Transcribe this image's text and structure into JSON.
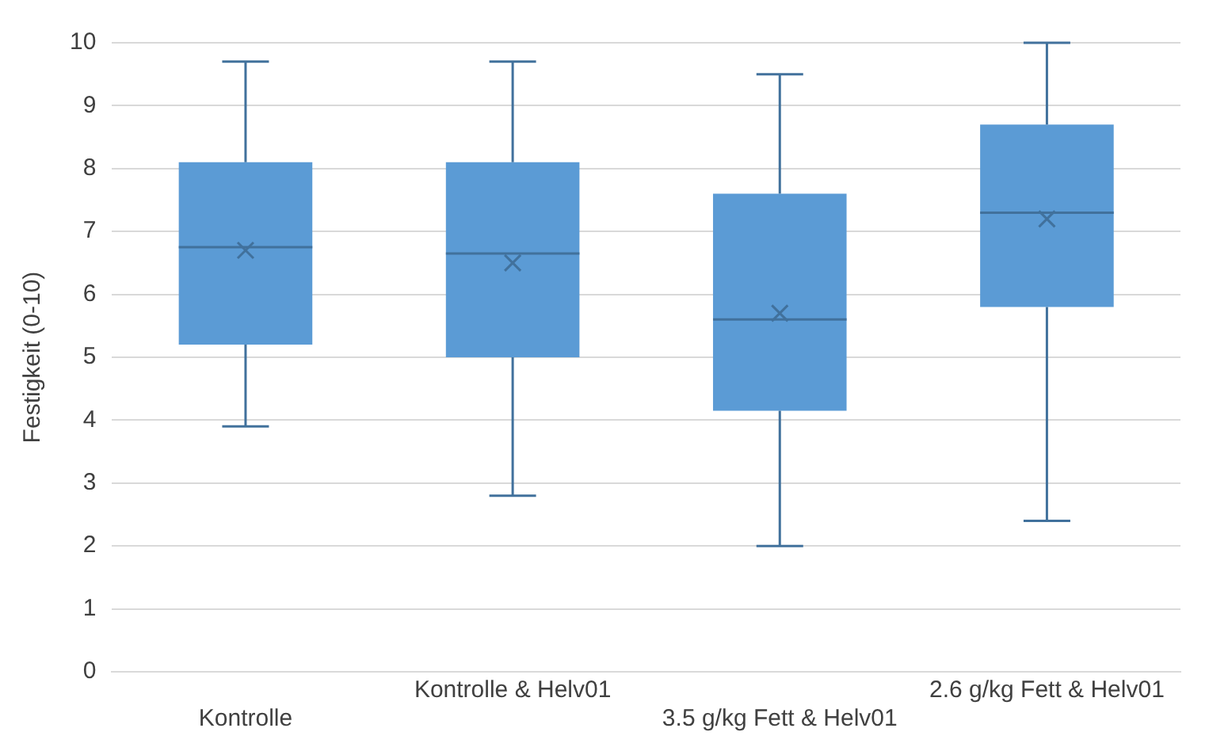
{
  "chart_data": {
    "type": "box",
    "ylabel": "Festigkeit (0-10)",
    "categories": [
      "Kontrolle",
      "Kontrolle & Helv01",
      "3.5 g/kg Fett & Helv01",
      "2.6 g/kg Fett & Helv01"
    ],
    "color": "#5b9bd5",
    "boxes": [
      {
        "low": 3.9,
        "q1": 5.2,
        "median": 6.75,
        "q3": 8.1,
        "high": 9.7,
        "mean": 6.7
      },
      {
        "low": 2.8,
        "q1": 5.0,
        "median": 6.65,
        "q3": 8.1,
        "high": 9.7,
        "mean": 6.5
      },
      {
        "low": 2.0,
        "q1": 4.15,
        "median": 5.6,
        "q3": 7.6,
        "high": 9.5,
        "mean": 5.7
      },
      {
        "low": 2.4,
        "q1": 5.8,
        "median": 7.3,
        "q3": 8.7,
        "high": 10,
        "mean": 7.2
      }
    ],
    "ylim": [
      0,
      10
    ],
    "yticks": [
      0,
      1,
      2,
      3,
      4,
      5,
      6,
      7,
      8,
      9,
      10
    ],
    "grid": "y"
  }
}
